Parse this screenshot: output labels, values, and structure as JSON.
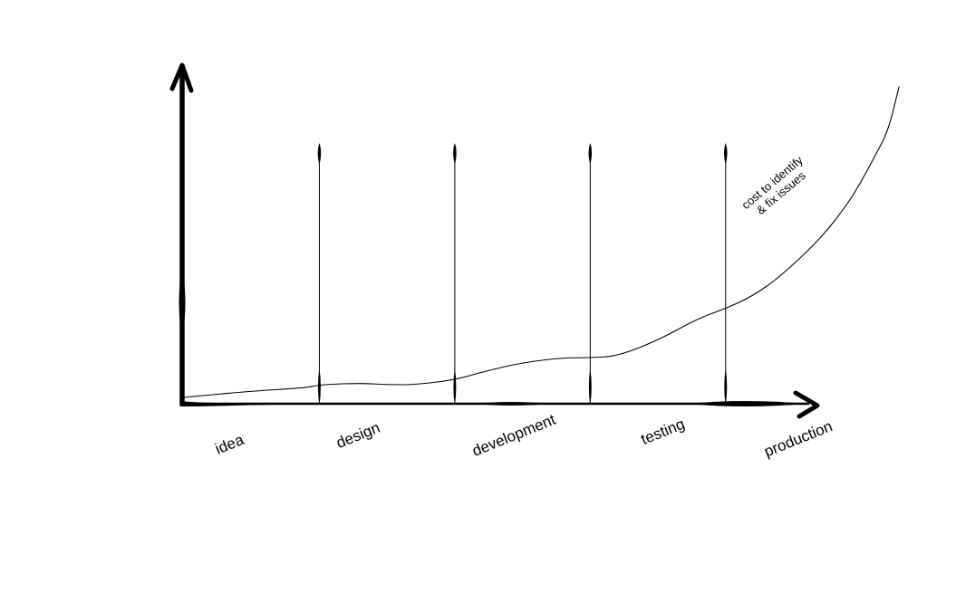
{
  "chart_data": {
    "type": "line",
    "title": "",
    "xlabel": "",
    "ylabel": "",
    "grid": false,
    "legend": "none",
    "line_color": "#000000",
    "background": "#ffffff",
    "phases": [
      "idea",
      "design",
      "development",
      "testing",
      "production"
    ],
    "phase_boundaries": [
      1,
      2,
      3,
      4
    ],
    "xlim": [
      0,
      5.4
    ],
    "ylim": [
      0,
      10
    ],
    "series": [
      {
        "annotation": "cost to identify & fix issues",
        "annotation_lines": [
          "cost to identify",
          "& fix issues"
        ],
        "x": [
          0,
          0.5,
          0.9,
          1.0,
          1.3,
          1.5,
          1.7,
          2.0,
          2.2,
          2.5,
          2.8,
          3.0,
          3.2,
          3.5,
          3.8,
          4.0,
          4.2,
          4.4,
          4.7,
          4.9,
          5.0,
          5.1,
          5.2,
          5.28
        ],
        "y": [
          0.2,
          0.4,
          0.5,
          0.6,
          0.65,
          0.6,
          0.6,
          0.75,
          1.0,
          1.3,
          1.45,
          1.45,
          1.5,
          2.0,
          2.7,
          3.0,
          3.4,
          4.0,
          5.2,
          6.3,
          7.0,
          7.8,
          8.6,
          10.0
        ]
      }
    ]
  }
}
